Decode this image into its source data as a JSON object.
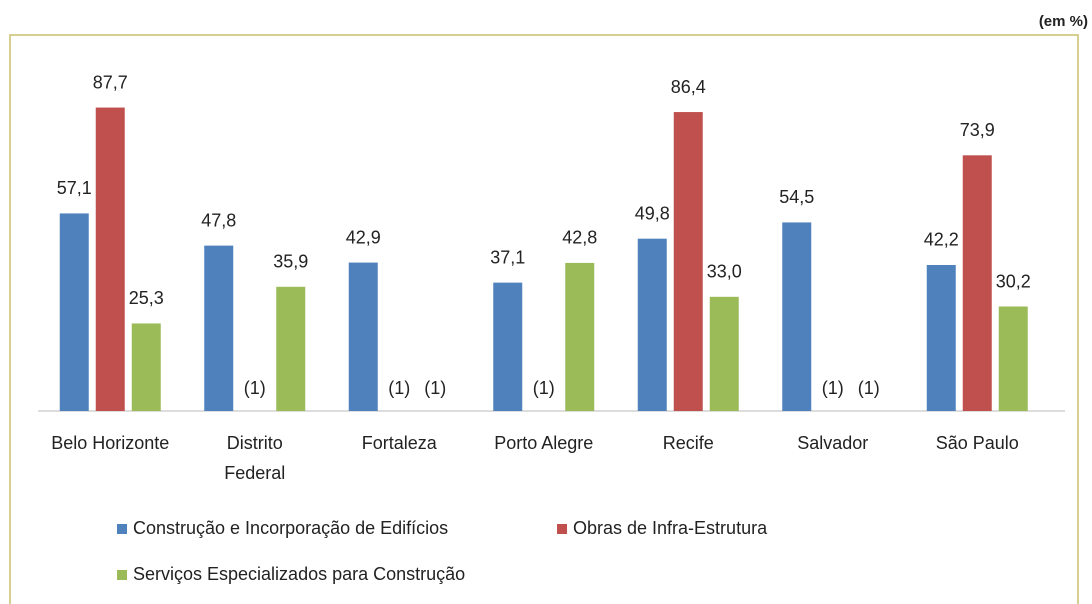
{
  "chart_data": {
    "type": "bar",
    "subtitle": "(em %)",
    "categories": [
      "Belo Horizonte",
      "Distrito Federal",
      "Fortaleza",
      "Porto Alegre",
      "Recife",
      "Salvador",
      "São Paulo"
    ],
    "series": [
      {
        "name": "Construção e Incorporação de Edifícios",
        "color": "#4f81bd",
        "values": [
          57.1,
          47.8,
          42.9,
          37.1,
          49.8,
          54.5,
          42.2
        ],
        "value_labels": [
          "57,1",
          "47,8",
          "42,9",
          "37,1",
          "49,8",
          "54,5",
          "42,2"
        ]
      },
      {
        "name": "Obras de Infra-Estrutura",
        "color": "#c0504d",
        "values": [
          87.7,
          null,
          null,
          null,
          86.4,
          null,
          73.9
        ],
        "value_labels": [
          "87,7",
          "(1)",
          "(1)",
          "(1)",
          "86,4",
          "(1)",
          "73,9"
        ]
      },
      {
        "name": "Serviços Especializados para Construção",
        "color": "#9bbb59",
        "values": [
          25.3,
          35.9,
          null,
          42.8,
          33.0,
          null,
          30.2
        ],
        "value_labels": [
          "25,3",
          "35,9",
          "(1)",
          "42,8",
          "33,0",
          "(1)",
          "30,2"
        ]
      }
    ],
    "ylim": [
      0,
      100
    ]
  }
}
